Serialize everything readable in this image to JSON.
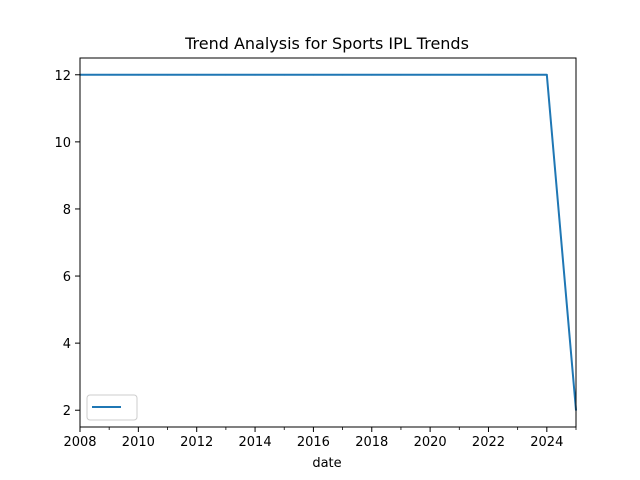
{
  "chart_data": {
    "type": "line",
    "title": "Trend Analysis for Sports IPL Trends",
    "xlabel": "date",
    "ylabel": "",
    "xlim": [
      2008,
      2025
    ],
    "ylim": [
      1.5,
      12.5
    ],
    "grid": false,
    "legend_position": "lower-left",
    "x_major_ticks": [
      2008,
      2010,
      2012,
      2014,
      2016,
      2018,
      2020,
      2022,
      2024
    ],
    "x_tick_labels": [
      "2008",
      "2010",
      "2012",
      "2014",
      "2016",
      "2018",
      "2020",
      "2022",
      "2024"
    ],
    "x_minor_ticks": [
      2009,
      2011,
      2013,
      2015,
      2017,
      2019,
      2021,
      2023,
      2025
    ],
    "y_ticks": [
      2,
      4,
      6,
      8,
      10,
      12
    ],
    "y_tick_labels": [
      "2",
      "4",
      "6",
      "8",
      "10",
      "12"
    ],
    "series": [
      {
        "name": "",
        "color": "#1f77b4",
        "x": [
          2008,
          2009,
          2010,
          2011,
          2012,
          2013,
          2014,
          2015,
          2016,
          2017,
          2018,
          2019,
          2020,
          2021,
          2022,
          2023,
          2024,
          2025
        ],
        "y": [
          12,
          12,
          12,
          12,
          12,
          12,
          12,
          12,
          12,
          12,
          12,
          12,
          12,
          12,
          12,
          12,
          12,
          2
        ]
      }
    ]
  }
}
